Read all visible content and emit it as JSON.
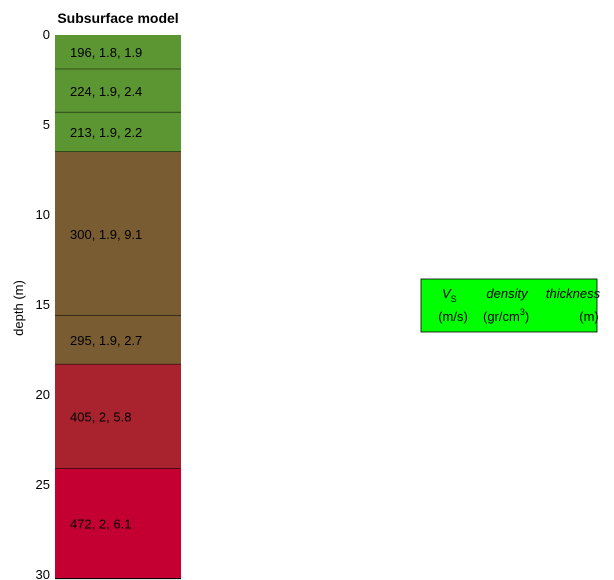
{
  "chart_data": {
    "type": "bar",
    "title": "Subsurface model",
    "ylabel": "depth (m)",
    "ylim": [
      0,
      30
    ],
    "yticks": [
      0,
      5,
      10,
      15,
      20,
      25,
      30
    ],
    "layers": [
      {
        "label": "196, 1.8, 1.9",
        "vs": 196,
        "density": 1.8,
        "thickness": 1.9,
        "top": 0,
        "bottom": 1.9,
        "color": "#5c9632"
      },
      {
        "label": "224, 1.9, 2.4",
        "vs": 224,
        "density": 1.9,
        "thickness": 2.4,
        "top": 1.9,
        "bottom": 4.3,
        "color": "#5c9632"
      },
      {
        "label": "213, 1.9, 2.2",
        "vs": 213,
        "density": 1.9,
        "thickness": 2.2,
        "top": 4.3,
        "bottom": 6.5,
        "color": "#5c9632"
      },
      {
        "label": "300, 1.9, 9.1",
        "vs": 300,
        "density": 1.9,
        "thickness": 9.1,
        "top": 6.5,
        "bottom": 15.6,
        "color": "#7a5c32"
      },
      {
        "label": "295, 1.9, 2.7",
        "vs": 295,
        "density": 1.9,
        "thickness": 2.7,
        "top": 15.6,
        "bottom": 18.3,
        "color": "#7a5c32"
      },
      {
        "label": "405, 2, 5.8",
        "vs": 405,
        "density": 2,
        "thickness": 5.8,
        "top": 18.3,
        "bottom": 24.1,
        "color": "#a8232e"
      },
      {
        "label": "472, 2, 6.1",
        "vs": 472,
        "density": 2,
        "thickness": 6.1,
        "top": 24.1,
        "bottom": 30.2,
        "color": "#c40033"
      }
    ],
    "legend": {
      "line1": {
        "vs": "V",
        "vs_sub": "S",
        "density": "density",
        "thickness": "thickness"
      },
      "line2": {
        "vs": "(m/s)",
        "density": "(gr/cm",
        "density_sup": "3",
        "density_close": ")",
        "thickness": "(m)"
      },
      "color": "#00ff00"
    }
  }
}
